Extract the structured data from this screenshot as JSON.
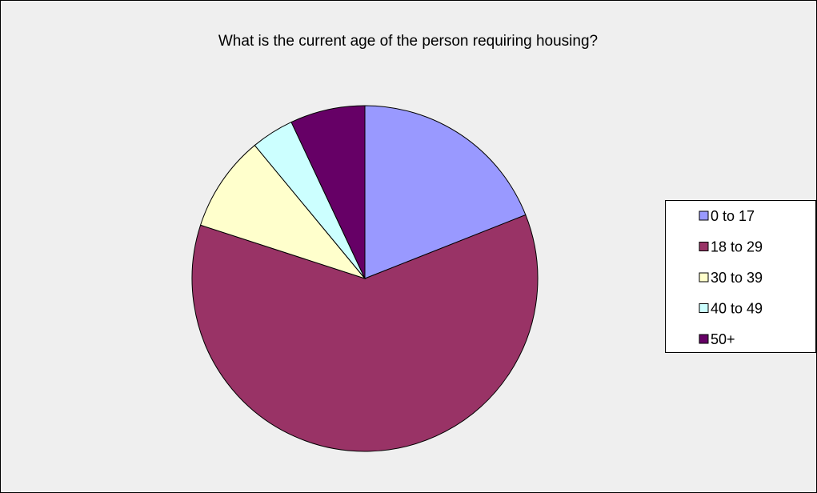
{
  "chart_data": {
    "type": "pie",
    "title": "What is the current age of the person requiring housing?",
    "categories": [
      "0 to 17",
      "18 to 29",
      "30 to 39",
      "40 to 49",
      "50+"
    ],
    "values": [
      19,
      61,
      9,
      4,
      7
    ],
    "colors": [
      "#9999ff",
      "#993366",
      "#ffffcc",
      "#ccffff",
      "#660066"
    ],
    "legend": "right"
  }
}
